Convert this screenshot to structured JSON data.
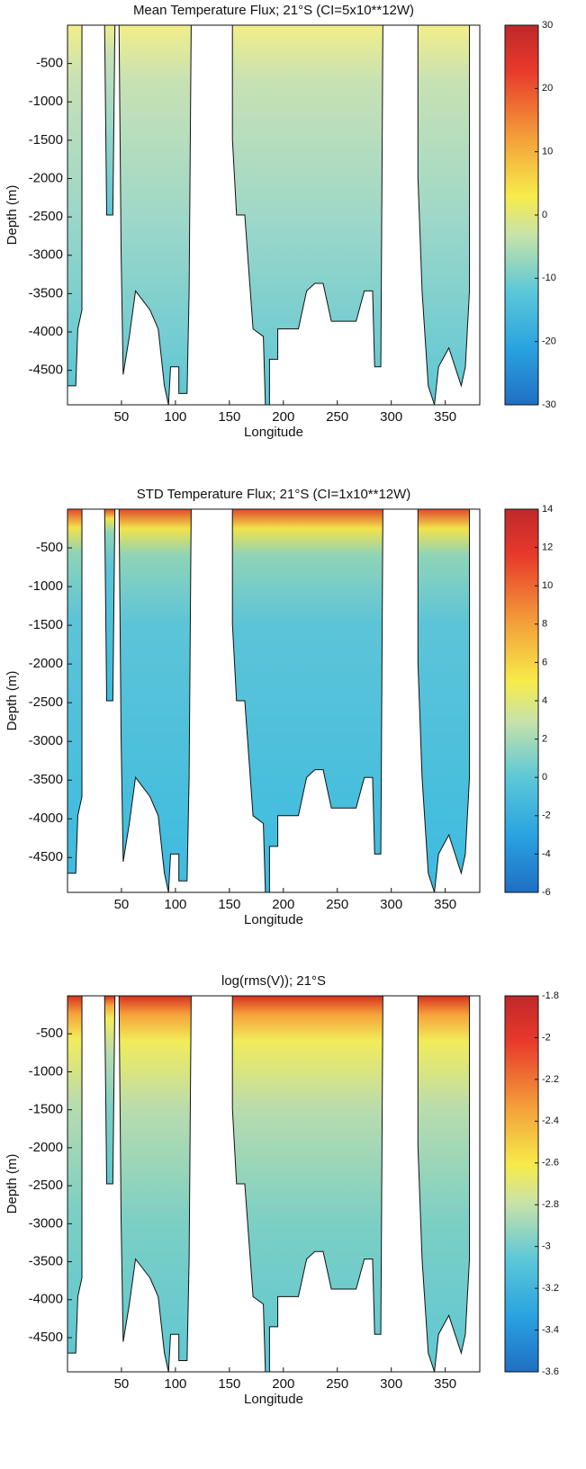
{
  "chart_data": [
    {
      "type": "contour",
      "title": "Mean Temperature Flux; 21°S (CI=5x10**12W)",
      "xlabel": "Longitude",
      "ylabel": "Depth (m)",
      "xlim": [
        0,
        382
      ],
      "xticks": [
        50,
        100,
        150,
        200,
        250,
        300,
        350
      ],
      "ylim": [
        -4950,
        0
      ],
      "yticks": [
        -500,
        -1000,
        -1500,
        -2000,
        -2500,
        -3000,
        -3500,
        -4000,
        -4500
      ],
      "colorbar": {
        "lim": [
          -30,
          30
        ],
        "ticks": [
          30,
          20,
          10,
          0,
          -10,
          -20,
          -30
        ]
      }
    },
    {
      "type": "contour",
      "title": "STD Temperature Flux; 21°S (CI=1x10**12W)",
      "xlabel": "Longitude",
      "ylabel": "Depth (m)",
      "xlim": [
        0,
        382
      ],
      "xticks": [
        50,
        100,
        150,
        200,
        250,
        300,
        350
      ],
      "ylim": [
        -4950,
        0
      ],
      "yticks": [
        -500,
        -1000,
        -1500,
        -2000,
        -2500,
        -3000,
        -3500,
        -4000,
        -4500
      ],
      "colorbar": {
        "lim": [
          -6,
          14
        ],
        "ticks": [
          14,
          12,
          10,
          8,
          6,
          4,
          2,
          0,
          -2,
          -4,
          -6
        ]
      }
    },
    {
      "type": "contour",
      "title": "log(rms(V)); 21°S",
      "xlabel": "Longitude",
      "ylabel": "Depth (m)",
      "xlim": [
        0,
        382
      ],
      "xticks": [
        50,
        100,
        150,
        200,
        250,
        300,
        350
      ],
      "ylim": [
        -4950,
        0
      ],
      "yticks": [
        -500,
        -1000,
        -1500,
        -2000,
        -2500,
        -3000,
        -3500,
        -4000,
        -4500
      ],
      "colorbar": {
        "lim": [
          -3.6,
          -1.8
        ],
        "ticks": [
          -1.8,
          -2,
          -2.2,
          -2.4,
          -2.6,
          -2.8,
          -3,
          -3.2,
          -3.4,
          -3.6
        ]
      }
    }
  ]
}
